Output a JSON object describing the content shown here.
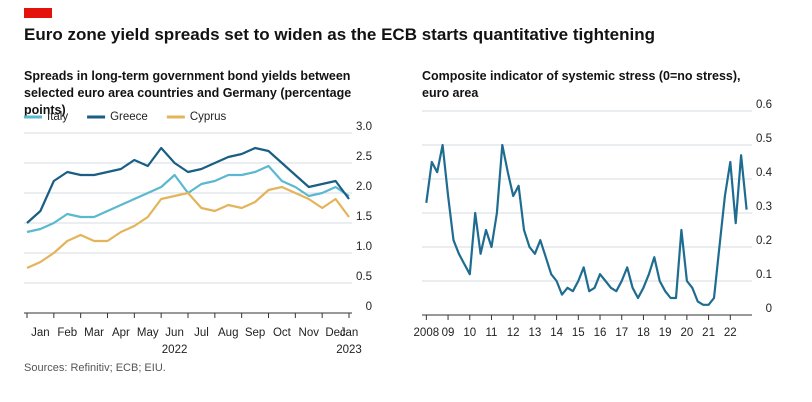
{
  "title": "Euro zone yield spreads set to widen as the ECB starts quantitative tightening",
  "source": "Sources: Refinitiv; ECB; EIU.",
  "chart_data": [
    {
      "type": "line",
      "subtitle": "Spreads in long-term government bond yields between selected euro area countries and Germany (percentage points)",
      "categories": [
        "Jan",
        null,
        "Feb",
        null,
        "Mar",
        null,
        "Apr",
        null,
        "May",
        null,
        "Jun",
        null,
        "Jul",
        null,
        "Aug",
        null,
        "Sep",
        null,
        "Oct",
        null,
        "Nov",
        null,
        "Dec",
        null,
        "Jan"
      ],
      "x_year_labels": [
        "2022",
        "2023"
      ],
      "series": [
        {
          "name": "Italy",
          "color": "#5bb8d0",
          "values": [
            1.35,
            1.4,
            1.5,
            1.65,
            1.6,
            1.6,
            1.7,
            1.8,
            1.9,
            2.0,
            2.1,
            2.3,
            2.0,
            2.15,
            2.2,
            2.3,
            2.3,
            2.35,
            2.45,
            2.2,
            2.1,
            1.95,
            2.0,
            2.1,
            1.95
          ]
        },
        {
          "name": "Greece",
          "color": "#1a5e84",
          "values": [
            1.5,
            1.7,
            2.2,
            2.35,
            2.3,
            2.3,
            2.35,
            2.4,
            2.55,
            2.45,
            2.75,
            2.5,
            2.35,
            2.4,
            2.5,
            2.6,
            2.65,
            2.75,
            2.7,
            2.5,
            2.3,
            2.1,
            2.15,
            2.2,
            1.9
          ]
        },
        {
          "name": "Cyprus",
          "color": "#e3b45a",
          "values": [
            0.75,
            0.85,
            1.0,
            1.2,
            1.3,
            1.2,
            1.2,
            1.35,
            1.45,
            1.6,
            1.9,
            1.95,
            2.0,
            1.75,
            1.7,
            1.8,
            1.75,
            1.85,
            2.05,
            2.1,
            2.0,
            1.9,
            1.75,
            1.9,
            1.6
          ]
        }
      ],
      "ylim": [
        0,
        3
      ],
      "yticks": [
        0,
        0.5,
        {
          "value": 1,
          "label": "1.0"
        },
        1.5,
        {
          "value": 2,
          "label": "2.0"
        },
        2.5,
        {
          "value": 3,
          "label": "3.0"
        }
      ],
      "grid": true,
      "legend": "top-left"
    },
    {
      "type": "line",
      "subtitle": "Composite indicator of systemic stress (0=no stress), euro area",
      "x": [
        2008,
        2008.25,
        2008.5,
        2008.75,
        2009,
        2009.25,
        2009.5,
        2009.75,
        2010,
        2010.25,
        2010.5,
        2010.75,
        2011,
        2011.25,
        2011.5,
        2011.75,
        2012,
        2012.25,
        2012.5,
        2012.75,
        2013,
        2013.25,
        2013.5,
        2013.75,
        2014,
        2014.25,
        2014.5,
        2014.75,
        2015,
        2015.25,
        2015.5,
        2015.75,
        2016,
        2016.25,
        2016.5,
        2016.75,
        2017,
        2017.25,
        2017.5,
        2017.75,
        2018,
        2018.25,
        2018.5,
        2018.75,
        2019,
        2019.25,
        2019.5,
        2019.75,
        2020,
        2020.25,
        2020.5,
        2020.75,
        2021,
        2021.25,
        2021.5,
        2021.75,
        2022,
        2022.25,
        2022.5,
        2022.75
      ],
      "series": [
        {
          "color": "#1f6c91",
          "values": [
            0.33,
            0.45,
            0.42,
            0.5,
            0.35,
            0.22,
            0.18,
            0.15,
            0.12,
            0.3,
            0.18,
            0.25,
            0.2,
            0.3,
            0.5,
            0.42,
            0.35,
            0.38,
            0.25,
            0.2,
            0.18,
            0.22,
            0.17,
            0.12,
            0.1,
            0.06,
            0.08,
            0.07,
            0.1,
            0.14,
            0.07,
            0.08,
            0.12,
            0.1,
            0.08,
            0.07,
            0.1,
            0.14,
            0.08,
            0.05,
            0.08,
            0.12,
            0.17,
            0.1,
            0.07,
            0.05,
            0.05,
            0.25,
            0.1,
            0.08,
            0.04,
            0.03,
            0.03,
            0.05,
            0.2,
            0.35,
            0.45,
            0.27,
            0.47,
            0.31
          ]
        }
      ],
      "xlim": [
        2007.8,
        2023
      ],
      "xticks": [
        2008,
        {
          "value": 2009,
          "label": "09"
        },
        {
          "value": 2010,
          "label": "10"
        },
        {
          "value": 2011,
          "label": "11"
        },
        {
          "value": 2012,
          "label": "12"
        },
        {
          "value": 2013,
          "label": "13"
        },
        {
          "value": 2014,
          "label": "14"
        },
        {
          "value": 2015,
          "label": "15"
        },
        {
          "value": 2016,
          "label": "16"
        },
        {
          "value": 2017,
          "label": "17"
        },
        {
          "value": 2018,
          "label": "18"
        },
        {
          "value": 2019,
          "label": "19"
        },
        {
          "value": 2020,
          "label": "20"
        },
        {
          "value": 2021,
          "label": "21"
        },
        {
          "value": 2022,
          "label": "22"
        }
      ],
      "ylim": [
        0,
        0.6
      ],
      "yticks": [
        0,
        0.1,
        0.2,
        0.3,
        0.4,
        0.5,
        0.6
      ],
      "grid": true
    }
  ]
}
